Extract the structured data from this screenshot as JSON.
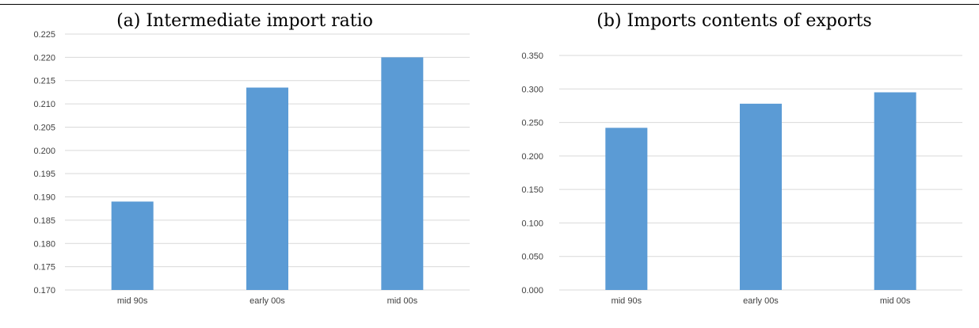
{
  "chart_data": [
    {
      "type": "bar",
      "title": "(a) Intermediate import ratio",
      "categories": [
        "mid 90s",
        "early 00s",
        "mid 00s"
      ],
      "values": [
        0.189,
        0.2135,
        0.22
      ],
      "ylim": [
        0.17,
        0.225
      ],
      "yticks": [
        "0.170",
        "0.175",
        "0.180",
        "0.185",
        "0.190",
        "0.195",
        "0.200",
        "0.205",
        "0.210",
        "0.215",
        "0.220",
        "0.225"
      ],
      "grid": true,
      "bar_color": "#5b9bd5",
      "grid_color": "#d9d9d9",
      "xlabel": "",
      "ylabel": ""
    },
    {
      "type": "bar",
      "title": "(b) Imports contents of exports",
      "categories": [
        "mid 90s",
        "early 00s",
        "mid 00s"
      ],
      "values": [
        0.242,
        0.278,
        0.295
      ],
      "ylim": [
        0.0,
        0.35
      ],
      "yticks": [
        "0.000",
        "0.050",
        "0.100",
        "0.150",
        "0.200",
        "0.250",
        "0.300",
        "0.350"
      ],
      "grid": true,
      "bar_color": "#5b9bd5",
      "grid_color": "#d9d9d9",
      "xlabel": "",
      "ylabel": ""
    }
  ]
}
